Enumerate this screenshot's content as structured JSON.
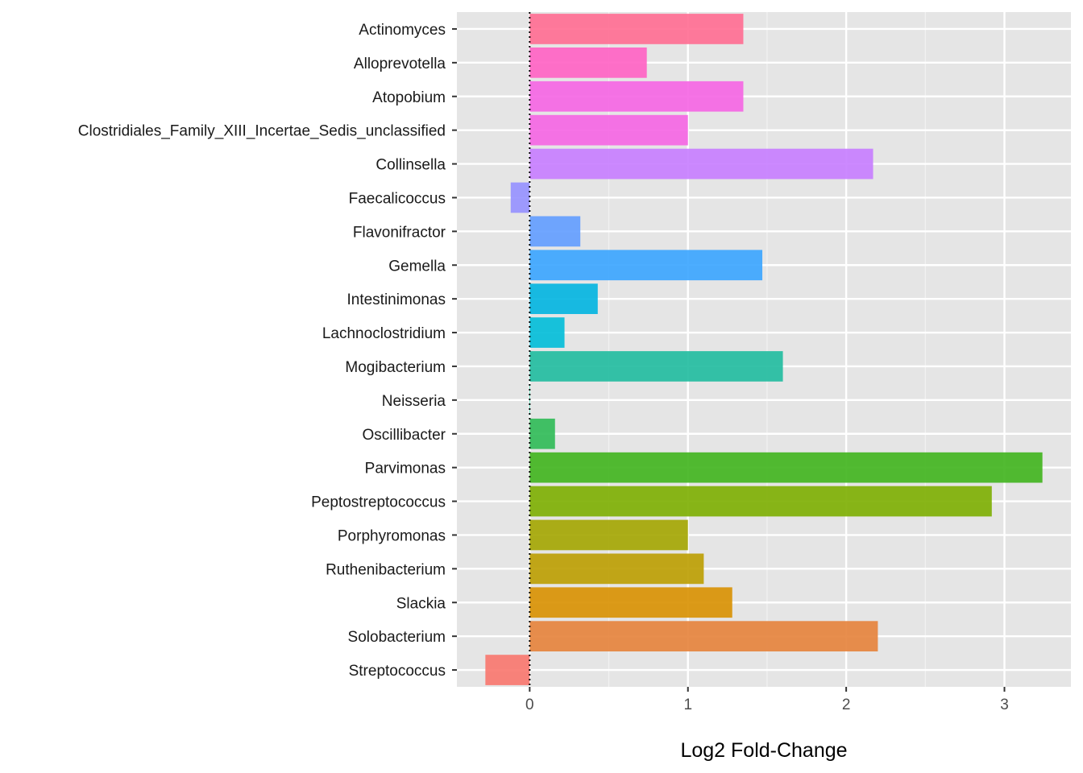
{
  "chart_data": {
    "type": "bar",
    "orientation": "horizontal",
    "title": "",
    "xlabel": "Log2 Fold-Change",
    "ylabel": "",
    "xlim": [
      -0.46,
      3.42
    ],
    "x_ticks": [
      0,
      1,
      2,
      3
    ],
    "x_tick_labels": [
      "0",
      "1",
      "2",
      "3"
    ],
    "grid": true,
    "panel_background": "#E5E5E5",
    "reference_line": {
      "x": 0,
      "style": "dotted",
      "color": "#000000"
    },
    "legend": "none",
    "categories": [
      "Actinomyces",
      "Alloprevotella",
      "Atopobium",
      "Clostridiales_Family_XIII_Incertae_Sedis_unclassified",
      "Collinsella",
      "Faecalicoccus",
      "Flavonifractor",
      "Gemella",
      "Intestinimonas",
      "Lachnoclostridium",
      "Mogibacterium",
      "Neisseria",
      "Oscillibacter",
      "Parvimonas",
      "Peptostreptococcus",
      "Porphyromonas",
      "Ruthenibacterium",
      "Slackia",
      "Solobacterium",
      "Streptococcus"
    ],
    "values": [
      1.35,
      0.74,
      1.35,
      1.0,
      2.17,
      -0.12,
      0.32,
      1.47,
      0.43,
      0.22,
      1.6,
      0.0,
      0.16,
      3.24,
      2.92,
      1.0,
      1.1,
      1.28,
      2.2,
      -0.28
    ],
    "colors": [
      "#F8766D",
      "#E88526",
      "#D39200",
      "#B79F00",
      "#93AA00",
      "#5EB300",
      "#00BA38",
      "#00BF74",
      "#00C19F",
      "#00BFC4",
      "#00B9E3",
      "#00ADFA",
      "#619CFF",
      "#AE87FF",
      "#DB72FB",
      "#F564E3",
      "#FF61C3",
      "#FF6C91"
    ],
    "bar_colors": [
      "#FF6C91",
      "#FF61C3",
      "#F564E3",
      "#F564E3",
      "#C77CFF",
      "#9590FF",
      "#619CFF",
      "#39A4FF",
      "#00B4E0",
      "#00BCD8",
      "#1FBB9E",
      "#00C08B",
      "#2EBA55",
      "#3FB41C",
      "#7CAE00",
      "#A3A500",
      "#BB9D00",
      "#D89000",
      "#E6823A",
      "#F8766D"
    ]
  }
}
